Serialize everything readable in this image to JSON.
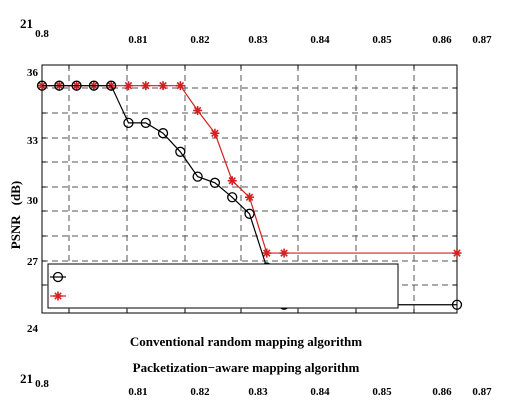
{
  "chart_data": {
    "type": "line",
    "ylabel_parts": [
      "PSNR",
      "(dB)"
    ],
    "x_tick_labels": [
      "0.8",
      "0.81",
      "0.82",
      "0.83",
      "0.84",
      "0.85",
      "0.86",
      "0.87"
    ],
    "x_tick_labels_duplicate": [
      "0.8",
      "0.81",
      "0.82",
      "0.83",
      "0.84",
      "0.85",
      "0.86",
      "0.87"
    ],
    "y_tick_labels": [
      "24",
      "27",
      "30",
      "33",
      "36"
    ],
    "corner_labels": [
      "21",
      "21"
    ],
    "xlim": [
      0.8,
      0.86
    ],
    "ylim": [
      24,
      36
    ],
    "grid": true,
    "legend_position": "bottom-left",
    "series": [
      {
        "name": "Conventional random mapping algorithm",
        "color": "#000000",
        "marker": "circle",
        "x": [
          0.8,
          0.8025,
          0.805,
          0.8075,
          0.81,
          0.8125,
          0.815,
          0.8175,
          0.82,
          0.8225,
          0.825,
          0.8275,
          0.83,
          0.8325,
          0.835,
          0.86
        ],
        "y": [
          35.0,
          35.0,
          35.0,
          35.0,
          35.0,
          33.2,
          33.2,
          32.7,
          31.8,
          30.6,
          30.3,
          29.6,
          28.8,
          26.2,
          24.4,
          24.4
        ]
      },
      {
        "name": "Packetization−aware mapping algorithm",
        "color": "#d42020",
        "marker": "star",
        "x": [
          0.8,
          0.8025,
          0.805,
          0.8075,
          0.81,
          0.8125,
          0.815,
          0.8175,
          0.82,
          0.8225,
          0.825,
          0.8275,
          0.83,
          0.8325,
          0.835,
          0.86
        ],
        "y": [
          35.0,
          35.0,
          35.0,
          35.0,
          35.0,
          35.0,
          35.0,
          35.0,
          35.0,
          33.8,
          32.7,
          30.4,
          29.6,
          26.9,
          26.9,
          26.9
        ]
      }
    ]
  }
}
